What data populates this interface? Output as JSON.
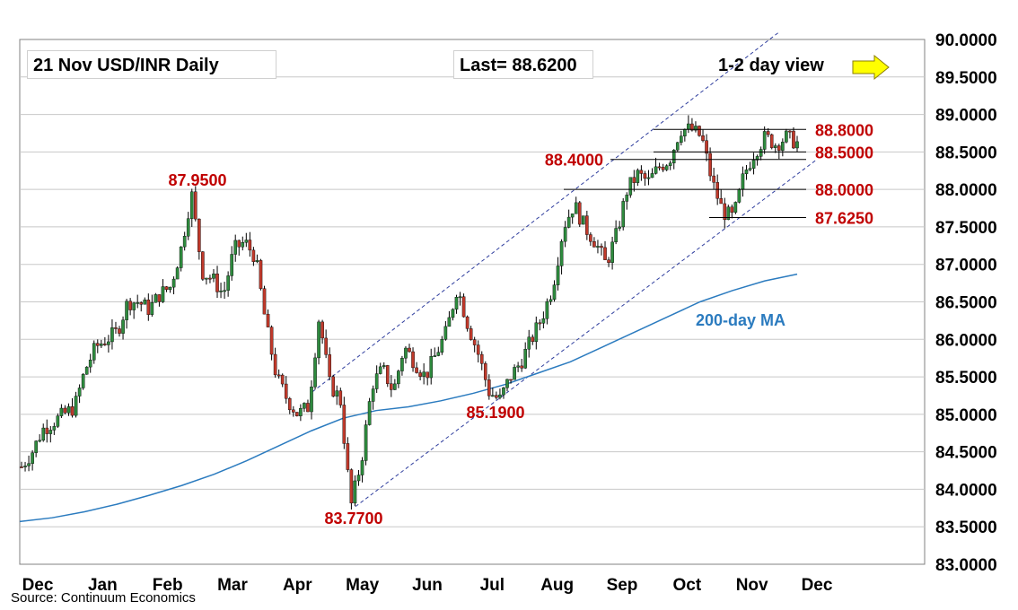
{
  "header": {
    "title": "21 Nov  USD/INR  Daily",
    "last": "Last= 88.6200",
    "view": "1-2 day view"
  },
  "source": "Source: Continuum Economics",
  "colors": {
    "up_candle": "#2e8b3e",
    "down_candle": "#c0392b",
    "level_line": "#c00000",
    "ma_line": "#2b7bbf",
    "channel": "#2f3e9e",
    "arrow": "#ffff00",
    "grid": "#c8c8c8"
  },
  "chart_data": {
    "type": "candlestick",
    "x_ticks": [
      "Dec",
      "Jan",
      "Feb",
      "Mar",
      "Apr",
      "May",
      "Jun",
      "Jul",
      "Aug",
      "Sep",
      "Oct",
      "Nov",
      "Dec"
    ],
    "ylim": [
      83.0,
      90.0
    ],
    "y_ticks": [
      "83.0000",
      "83.5000",
      "84.0000",
      "84.5000",
      "85.0000",
      "85.5000",
      "86.0000",
      "86.5000",
      "87.0000",
      "87.5000",
      "88.0000",
      "88.5000",
      "89.0000",
      "89.5000",
      "90.0000"
    ],
    "grid": true,
    "price_close_path": [
      84.3,
      84.5,
      84.8,
      84.9,
      85.0,
      85.1,
      85.6,
      85.9,
      86.0,
      86.1,
      86.5,
      86.5,
      86.4,
      86.6,
      86.7,
      87.2,
      87.95,
      86.9,
      86.8,
      86.6,
      87.2,
      87.3,
      87.1,
      86.2,
      85.5,
      85.2,
      85.0,
      85.1,
      86.3,
      85.4,
      85.2,
      83.77,
      84.4,
      85.4,
      85.6,
      85.3,
      85.9,
      85.7,
      85.5,
      85.8,
      86.1,
      86.7,
      86.2,
      85.8,
      85.3,
      85.19,
      85.5,
      85.7,
      86.0,
      86.3,
      86.7,
      87.5,
      87.8,
      87.5,
      87.3,
      87.0,
      87.4,
      88.0,
      88.2,
      88.1,
      88.3,
      88.4,
      88.8,
      88.8,
      88.7,
      88.1,
      87.7,
      87.62,
      88.2,
      88.5,
      88.7,
      88.6,
      88.7,
      88.62
    ],
    "levels": [
      {
        "label": "88.8000",
        "value": 88.8
      },
      {
        "label": "88.5000",
        "value": 88.5
      },
      {
        "label": "88.4000",
        "value": 88.4
      },
      {
        "label": "88.0000",
        "value": 88.0
      },
      {
        "label": "87.6250",
        "value": 87.625
      }
    ],
    "annotations": [
      {
        "label": "87.9500",
        "value": 87.95
      },
      {
        "label": "83.7700",
        "value": 83.77
      },
      {
        "label": "85.1900",
        "value": 85.19
      }
    ],
    "ma": {
      "name": "200-day MA",
      "values": [
        83.57,
        83.62,
        83.7,
        83.8,
        83.92,
        84.05,
        84.2,
        84.38,
        84.58,
        84.78,
        84.95,
        85.05,
        85.1,
        85.18,
        85.28,
        85.4,
        85.55,
        85.7,
        85.9,
        86.1,
        86.3,
        86.5,
        86.65,
        86.78,
        86.87
      ]
    }
  }
}
